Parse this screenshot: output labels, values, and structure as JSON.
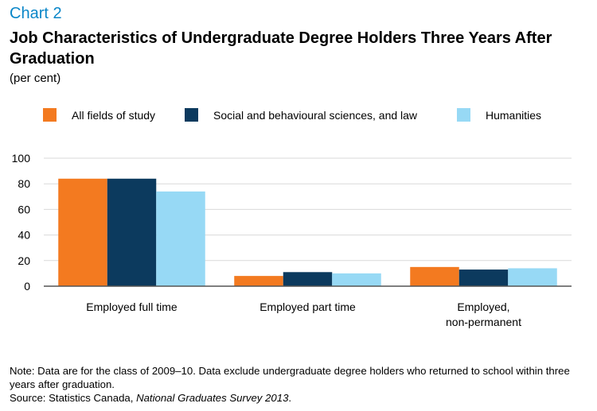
{
  "header": {
    "label": "Chart 2",
    "title": "Job Characteristics of Undergraduate Degree Holders Three Years After Graduation",
    "subtitle": "(per cent)"
  },
  "colors": {
    "label": "#0a86c8",
    "series": [
      "#f37a20",
      "#0c3a5e",
      "#97d9f5"
    ],
    "grid": "#d9d9d9",
    "axis": "#555555"
  },
  "chart_data": {
    "type": "bar",
    "categories": [
      "Employed full time",
      "Employed part time",
      "Employed, non-permanent"
    ],
    "category_lines": [
      [
        "Employed full time"
      ],
      [
        "Employed part time"
      ],
      [
        "Employed,",
        "non-permanent"
      ]
    ],
    "series": [
      {
        "name": "All fields of study",
        "values": [
          84,
          8,
          15
        ]
      },
      {
        "name": "Social and behavioural sciences, and law",
        "values": [
          84,
          11,
          13
        ]
      },
      {
        "name": "Humanities",
        "values": [
          74,
          10,
          14
        ]
      }
    ],
    "ylim": [
      0,
      100
    ],
    "yticks": [
      "0",
      "20",
      "40",
      "60",
      "80",
      "100"
    ],
    "grid": true,
    "legend": "top"
  },
  "footer": {
    "note": "Note: Data are for the class of 2009–10. Data exclude undergraduate degree holders who returned to school within three years after graduation.",
    "source_prefix": "Source: Statistics Canada, ",
    "source_title": "National Graduates Survey 2013",
    "source_suffix": "."
  }
}
